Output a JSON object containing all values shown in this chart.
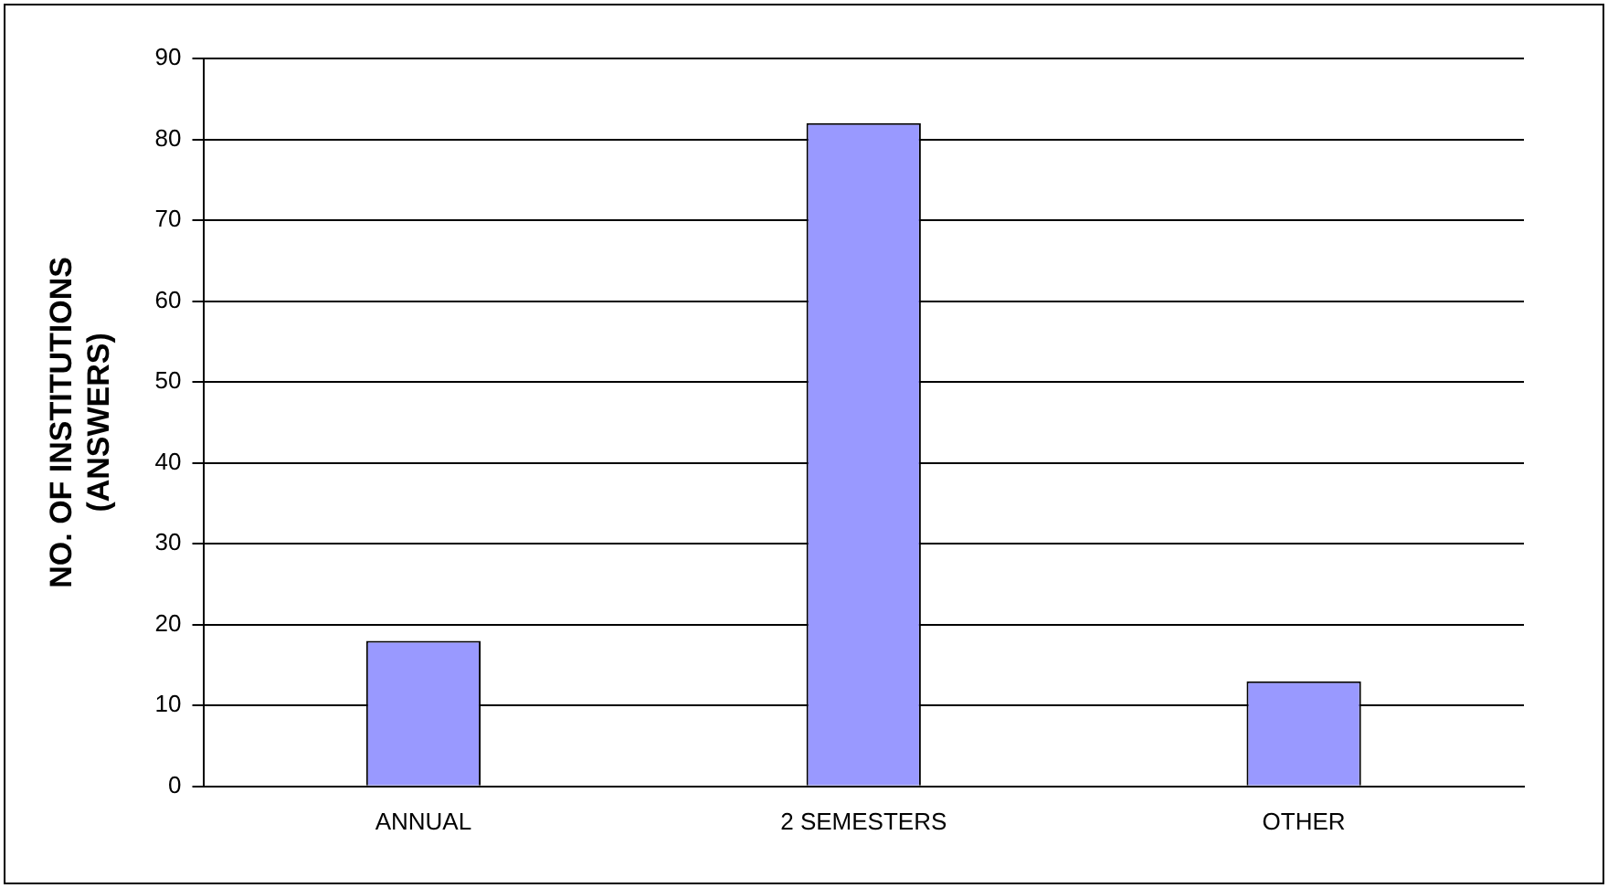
{
  "chart_data": {
    "type": "bar",
    "ylabel": "NO. OF INSTITUTIONS\n(ANSWERS)",
    "categories": [
      "ANNUAL",
      "2 SEMESTERS",
      "OTHER"
    ],
    "values": [
      18,
      82,
      13
    ],
    "color": "#9999ff",
    "ylim": [
      0,
      90
    ],
    "yticks": [
      0,
      10,
      20,
      30,
      40,
      50,
      60,
      70,
      80,
      90
    ],
    "grid": "y",
    "legend": false
  }
}
